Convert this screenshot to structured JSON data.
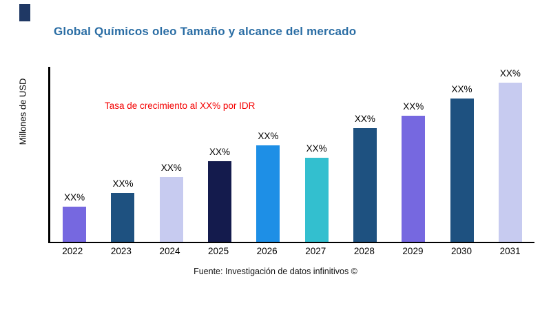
{
  "header": {
    "title": "Global Químicos oleo Tamaño y alcance del mercado",
    "title_color": "#2a6da4",
    "logo_color": "#1f3864"
  },
  "chart_data": {
    "type": "bar",
    "title": "Global Químicos oleo Tamaño y alcance del mercado",
    "xlabel": "",
    "ylabel": "Millones de USD",
    "annotation": "Tasa de crecimiento al XX% por IDR",
    "annotation_color": "#f40000",
    "categories": [
      "2022",
      "2023",
      "2024",
      "2025",
      "2026",
      "2027",
      "2028",
      "2029",
      "2030",
      "2031"
    ],
    "values": [
      20,
      28,
      37,
      46,
      55,
      48,
      65,
      72,
      82,
      91
    ],
    "bar_labels": [
      "XX%",
      "XX%",
      "XX%",
      "XX%",
      "XX%",
      "XX%",
      "XX%",
      "XX%",
      "XX%",
      "XX%"
    ],
    "bar_colors": [
      "#7668e0",
      "#1e5180",
      "#c7cbf0",
      "#141b4d",
      "#1e8fe6",
      "#33bfcf",
      "#1e5180",
      "#7668e0",
      "#1e5180",
      "#c7cbf0"
    ],
    "ylim": [
      0,
      100
    ],
    "grid": false,
    "legend": false
  },
  "footer": {
    "source": "Fuente: Investigación de datos infinitivos ©"
  }
}
